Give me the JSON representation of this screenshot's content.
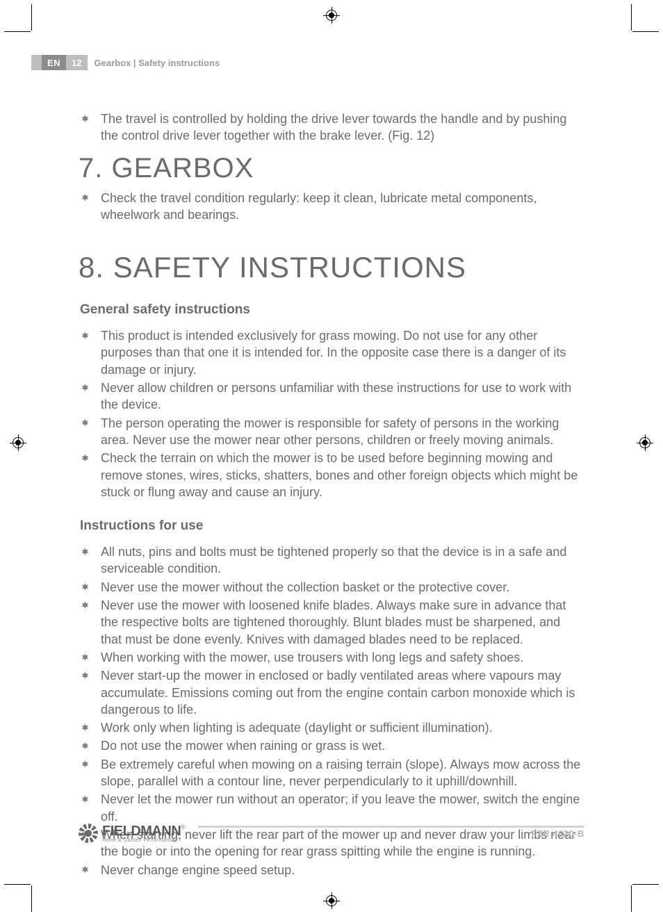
{
  "colors": {
    "text": "#6b6b6b",
    "meta_bg_dark": "#8c8c8c",
    "meta_bg_light": "#bdbdbd",
    "rule": "#d4d4d4",
    "model": "#b8b8b8"
  },
  "header": {
    "lang": "EN",
    "page_num": "12",
    "section_label": "Gearbox | Safety instructions"
  },
  "intro_bullets": [
    "The travel is controlled by holding the drive lever towards the handle and by pushing the control drive lever together with the brake lever. (Fig. 12)"
  ],
  "sections": [
    {
      "title": "7. GEARBOX",
      "bullets": [
        "Check the travel condition regularly: keep it clean, lubricate metal components, wheelwork and bearings."
      ]
    },
    {
      "title": "8. SAFETY INSTRUCTIONS",
      "large": true,
      "groups": [
        {
          "subtitle": "General safety instructions",
          "bullets": [
            "This product is intended exclusively for grass mowing. Do not use for any other purposes than that one it is intended for. In the opposite case there is a danger of its damage or injury.",
            "Never allow children or persons unfamiliar with these instructions for use to work with the device.",
            "The person operating the mower is responsible for safety of persons in the working area. Never use the mower near other persons, children or freely moving animals.",
            "Check the terrain on which the mower is to be used before beginning mowing and remove stones, wires, sticks, shatters, bones and other foreign objects which might be stuck or flung away and cause an injury."
          ]
        },
        {
          "subtitle": "Instructions for use",
          "bullets": [
            "All nuts, pins and bolts must be tightened properly so that the device is in a safe and serviceable condition.",
            "Never use the mower without the collection basket or the protective cover.",
            "Never use the mower with loosened knife blades. Always make sure in advance that the respective bolts are tightened thoroughly. Blunt blades must be sharpened, and that must be done evenly. Knives with damaged blades need to be replaced.",
            "When working with the mower, use trousers with long legs and safety shoes.",
            "Never start-up the mower in enclosed or badly ventilated areas where vapours may accumulate. Emissions coming out from the engine contain carbon monoxide which is dangerous to life.",
            "Work only when lighting is adequate (daylight or sufficient illumination).",
            "Do not use the mower when raining or grass is wet.",
            "Be extremely careful when mowing on a raising terrain (slope).  Always mow across the slope, parallel with a contour line, never perpendicularly to it uphill/downhill.",
            "Never let the mower run without an operator; if you leave the mower, switch the engine off.",
            "When starting, never lift the rear part of the mower up and never draw your limbs near the bogie or into the opening for rear grass spitting while the engine is running.",
            "Never change engine speed setup."
          ]
        }
      ]
    }
  ],
  "footer": {
    "brand_name": "FIELDMANN",
    "brand_tag": "Home & Garden Performance",
    "brand_reg": "®",
    "model": "FZR 4620-B"
  }
}
